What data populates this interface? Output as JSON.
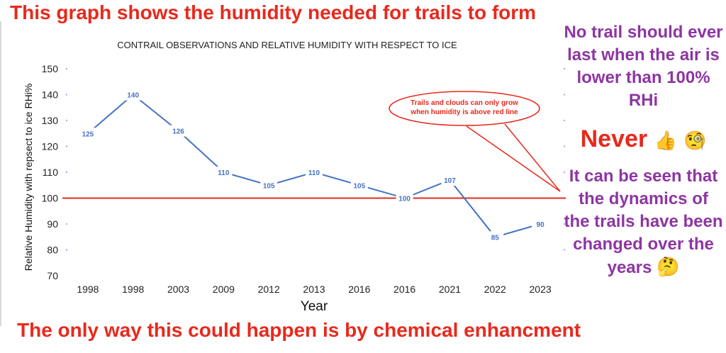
{
  "headline_top": "This graph shows the humidity needed for trails to form",
  "headline_bottom": "The only way this could happen is by chemical enhancment",
  "side": {
    "p1": "No trail should ever last when the air is lower than 100% RHi",
    "never": "Never",
    "never_emojis": "👍 🧐",
    "p2": "It can be seen that the dynamics of the trails have been changed over the years",
    "p2_emoji": "🤔"
  },
  "colors": {
    "line": "#4472c4",
    "threshold": "#e8291c",
    "headline": "#e8291c",
    "side_text": "#8e35a3"
  },
  "chart_data": {
    "type": "line",
    "title": "CONTRAIL OBSERVATIONS AND RELATIVE HUMIDITY WITH RESPECT TO ICE",
    "xlabel": "Year",
    "ylabel": "Relative Humidity with repsect to ice RHi%",
    "categories": [
      "1998",
      "1998",
      "2003",
      "2009",
      "2012",
      "2013",
      "2016",
      "2016",
      "2021",
      "2022",
      "2023"
    ],
    "values": [
      125,
      140,
      126,
      110,
      105,
      110,
      105,
      100,
      107,
      85,
      90
    ],
    "ylim": [
      70,
      150
    ],
    "yticks": [
      70,
      80,
      90,
      100,
      110,
      120,
      130,
      140,
      150
    ],
    "threshold": 100,
    "grid": false,
    "annotation": {
      "line1": "Trails and clouds can only grow",
      "line2": "when humidity is above red line"
    }
  }
}
